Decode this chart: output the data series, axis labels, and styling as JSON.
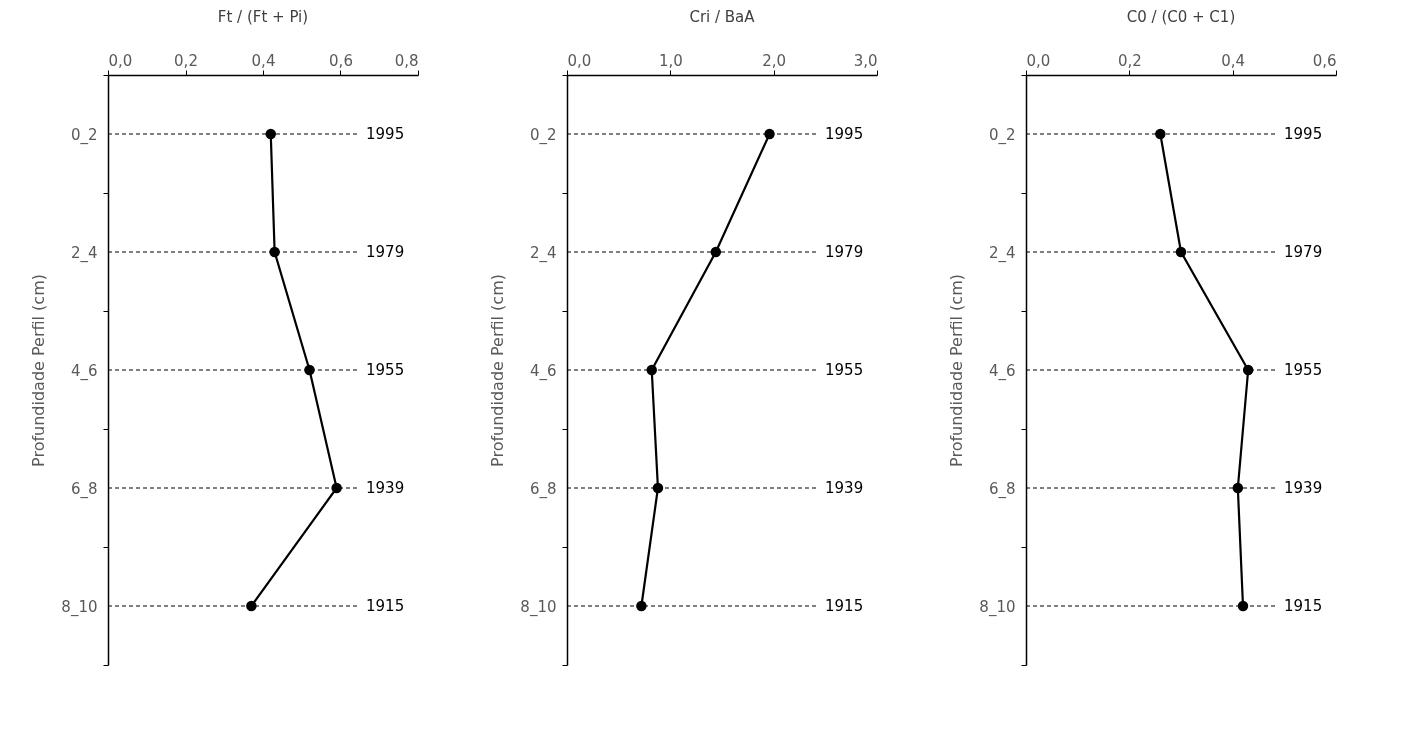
{
  "chart_data": [
    {
      "type": "line",
      "title": "Ft / (Ft + Pi)",
      "ylabel": "Profundidade Perfil (cm)",
      "orientation": "horizontal",
      "categories": [
        "0_2",
        "2_4",
        "4_6",
        "6_8",
        "8_10"
      ],
      "values": [
        0.42,
        0.43,
        0.52,
        0.59,
        0.37
      ],
      "color": "#000000",
      "marker": "circle",
      "line_style": "solid",
      "xlim": [
        0,
        0.8
      ],
      "xticks": [
        {
          "value": 0,
          "label": "0,0"
        },
        {
          "value": 0.2,
          "label": "0,2"
        },
        {
          "value": 0.4,
          "label": "0,4"
        },
        {
          "value": 0.6,
          "label": "0,6"
        },
        {
          "value": 0.8,
          "label": "0,8"
        }
      ],
      "ref_lines": [
        {
          "axis": "y",
          "value": "0_2",
          "label": "1995",
          "line_style": "dashed"
        },
        {
          "axis": "y",
          "value": "2_4",
          "label": "1979",
          "line_style": "dashed"
        },
        {
          "axis": "y",
          "value": "4_6",
          "label": "1955",
          "line_style": "dashed"
        },
        {
          "axis": "y",
          "value": "6_8",
          "label": "1939",
          "line_style": "dashed"
        },
        {
          "axis": "y",
          "value": "8_10",
          "label": "1915",
          "line_style": "dashed"
        }
      ]
    },
    {
      "type": "line",
      "title": "Cri / BaA",
      "ylabel": "Profundidade Perfil (cm)",
      "orientation": "horizontal",
      "categories": [
        "0_2",
        "2_4",
        "4_6",
        "6_8",
        "8_10"
      ],
      "values": [
        1.96,
        1.44,
        0.82,
        0.88,
        0.72
      ],
      "color": "#000000",
      "marker": "circle",
      "line_style": "solid",
      "xlim": [
        0,
        3
      ],
      "xticks": [
        {
          "value": 0,
          "label": "0,0"
        },
        {
          "value": 1,
          "label": "1,0"
        },
        {
          "value": 2,
          "label": "2,0"
        },
        {
          "value": 3,
          "label": "3,0"
        }
      ],
      "ref_lines": [
        {
          "axis": "y",
          "value": "0_2",
          "label": "1995",
          "line_style": "dashed"
        },
        {
          "axis": "y",
          "value": "2_4",
          "label": "1979",
          "line_style": "dashed"
        },
        {
          "axis": "y",
          "value": "4_6",
          "label": "1955",
          "line_style": "dashed"
        },
        {
          "axis": "y",
          "value": "6_8",
          "label": "1939",
          "line_style": "dashed"
        },
        {
          "axis": "y",
          "value": "8_10",
          "label": "1915",
          "line_style": "dashed"
        }
      ]
    },
    {
      "type": "line",
      "title": "C0 / (C0 + C1)",
      "ylabel": "Profundidade Perfil (cm)",
      "orientation": "horizontal",
      "categories": [
        "0_2",
        "2_4",
        "4_6",
        "6_8",
        "8_10"
      ],
      "values": [
        0.26,
        0.3,
        0.43,
        0.41,
        0.42
      ],
      "color": "#000000",
      "marker": "circle",
      "line_style": "solid",
      "xlim": [
        0,
        0.6
      ],
      "xticks": [
        {
          "value": 0,
          "label": "0,0"
        },
        {
          "value": 0.2,
          "label": "0,2"
        },
        {
          "value": 0.4,
          "label": "0,4"
        },
        {
          "value": 0.6,
          "label": "0,6"
        }
      ],
      "ref_lines": [
        {
          "axis": "y",
          "value": "0_2",
          "label": "1995",
          "line_style": "dashed"
        },
        {
          "axis": "y",
          "value": "2_4",
          "label": "1979",
          "line_style": "dashed"
        },
        {
          "axis": "y",
          "value": "4_6",
          "label": "1955",
          "line_style": "dashed"
        },
        {
          "axis": "y",
          "value": "6_8",
          "label": "1939",
          "line_style": "dashed"
        },
        {
          "axis": "y",
          "value": "8_10",
          "label": "1915",
          "line_style": "dashed"
        }
      ]
    }
  ]
}
